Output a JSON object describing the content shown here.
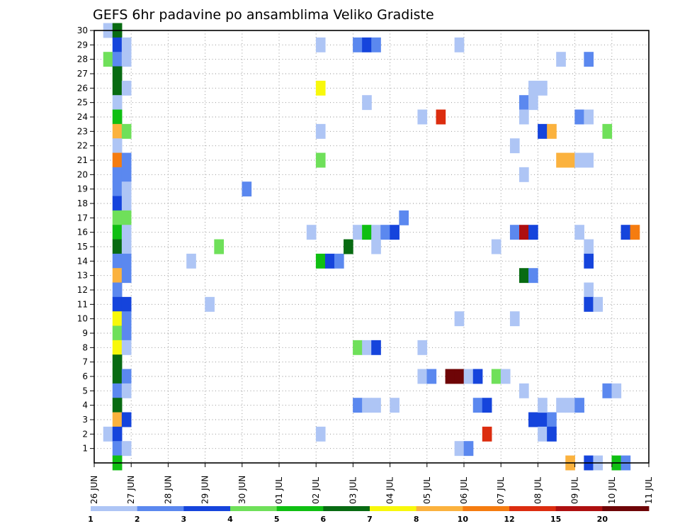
{
  "chart_data": {
    "type": "heatmap",
    "title": "GEFS 6hr padavine po ansamblima Veliko Gradiste",
    "xlabel": "",
    "ylabel": "",
    "x_tick_labels": [
      "26 JUN",
      "27 JUN",
      "28 JUN",
      "29 JUN",
      "30 JUN",
      "01 JUL",
      "02 JUL",
      "03 JUL",
      "04 JUL",
      "05 JUL",
      "06 JUL",
      "07 JUL",
      "08 JUL",
      "09 JUL",
      "10 JUL",
      "11 JUL"
    ],
    "y_tick_labels": [
      "1",
      "2",
      "3",
      "4",
      "5",
      "6",
      "7",
      "8",
      "9",
      "10",
      "11",
      "12",
      "13",
      "14",
      "15",
      "16",
      "17",
      "18",
      "19",
      "20",
      "21",
      "22",
      "23",
      "24",
      "25",
      "26",
      "27",
      "28",
      "29",
      "30"
    ],
    "x_range": [
      0,
      60
    ],
    "y_range": [
      0,
      30
    ],
    "grid": true,
    "colorbar_labels": [
      "1",
      "2",
      "3",
      "4",
      "5",
      "6",
      "7",
      "8",
      "10",
      "12",
      "15",
      "20"
    ],
    "colorbar_colors": [
      "#aec5f5",
      "#5b88ef",
      "#1544dc",
      "#6fe05a",
      "#0fbf12",
      "#086b12",
      "#f8f80b",
      "#fbb23e",
      "#f57c10",
      "#dc2d0f",
      "#ae0f10",
      "#6e0507"
    ],
    "units_note": "x = 6-hour step index from 26 JUN 00Z; y = ensemble member; cells = [x_step, member, color_class(0-11)]",
    "cells": [
      [
        1,
        30,
        0
      ],
      [
        2,
        30,
        5
      ],
      [
        2,
        29,
        2
      ],
      [
        3,
        29,
        0
      ],
      [
        1,
        28,
        3
      ],
      [
        2,
        28,
        1
      ],
      [
        3,
        28,
        0
      ],
      [
        2,
        27,
        5
      ],
      [
        2,
        26,
        5
      ],
      [
        3,
        26,
        0
      ],
      [
        2,
        25,
        0
      ],
      [
        2,
        24,
        4
      ],
      [
        2,
        23,
        7
      ],
      [
        3,
        23,
        3
      ],
      [
        2,
        22,
        0
      ],
      [
        2,
        21,
        8
      ],
      [
        3,
        21,
        1
      ],
      [
        2,
        20,
        1
      ],
      [
        3,
        20,
        1
      ],
      [
        2,
        19,
        1
      ],
      [
        3,
        19,
        0
      ],
      [
        2,
        18,
        2
      ],
      [
        3,
        18,
        0
      ],
      [
        2,
        17,
        3
      ],
      [
        3,
        17,
        3
      ],
      [
        2,
        16,
        4
      ],
      [
        3,
        16,
        0
      ],
      [
        2,
        15,
        5
      ],
      [
        3,
        15,
        0
      ],
      [
        2,
        14,
        1
      ],
      [
        3,
        14,
        1
      ],
      [
        2,
        13,
        7
      ],
      [
        3,
        13,
        1
      ],
      [
        2,
        12,
        1
      ],
      [
        2,
        11,
        2
      ],
      [
        3,
        11,
        2
      ],
      [
        2,
        10,
        6
      ],
      [
        3,
        10,
        1
      ],
      [
        2,
        9,
        3
      ],
      [
        3,
        9,
        1
      ],
      [
        2,
        8,
        6
      ],
      [
        3,
        8,
        0
      ],
      [
        2,
        7,
        5
      ],
      [
        2,
        6,
        5
      ],
      [
        3,
        6,
        1
      ],
      [
        2,
        5,
        1
      ],
      [
        3,
        5,
        0
      ],
      [
        2,
        4,
        5
      ],
      [
        2,
        3,
        7
      ],
      [
        3,
        3,
        2
      ],
      [
        1,
        2,
        0
      ],
      [
        2,
        2,
        2
      ],
      [
        2,
        1,
        1
      ],
      [
        3,
        1,
        0
      ],
      [
        2,
        0,
        4
      ],
      [
        10,
        14,
        0
      ],
      [
        12,
        11,
        0
      ],
      [
        13,
        15,
        3
      ],
      [
        16,
        19,
        1
      ],
      [
        23,
        16,
        0
      ],
      [
        24,
        29,
        0
      ],
      [
        24,
        26,
        6
      ],
      [
        24,
        23,
        0
      ],
      [
        24,
        21,
        3
      ],
      [
        24,
        14,
        4
      ],
      [
        25,
        14,
        2
      ],
      [
        26,
        14,
        1
      ],
      [
        24,
        2,
        0
      ],
      [
        27,
        15,
        5
      ],
      [
        28,
        16,
        0
      ],
      [
        29,
        16,
        4
      ],
      [
        30,
        16,
        0
      ],
      [
        31,
        16,
        1
      ],
      [
        32,
        16,
        2
      ],
      [
        33,
        17,
        1
      ],
      [
        28,
        29,
        1
      ],
      [
        29,
        29,
        2
      ],
      [
        30,
        29,
        1
      ],
      [
        29,
        25,
        0
      ],
      [
        28,
        8,
        3
      ],
      [
        29,
        8,
        0
      ],
      [
        30,
        8,
        2
      ],
      [
        28,
        4,
        1
      ],
      [
        29,
        4,
        0
      ],
      [
        30,
        4,
        0
      ],
      [
        32,
        4,
        0
      ],
      [
        30,
        15,
        0
      ],
      [
        35,
        24,
        0
      ],
      [
        37,
        24,
        9
      ],
      [
        35,
        8,
        0
      ],
      [
        35,
        6,
        0
      ],
      [
        36,
        6,
        1
      ],
      [
        38,
        6,
        11
      ],
      [
        39,
        6,
        11
      ],
      [
        40,
        6,
        0
      ],
      [
        41,
        6,
        2
      ],
      [
        39,
        29,
        0
      ],
      [
        39,
        10,
        0
      ],
      [
        39,
        1,
        0
      ],
      [
        40,
        1,
        1
      ],
      [
        41,
        4,
        1
      ],
      [
        42,
        4,
        2
      ],
      [
        43,
        15,
        0
      ],
      [
        43,
        6,
        3
      ],
      [
        44,
        6,
        0
      ],
      [
        42,
        2,
        9
      ],
      [
        45,
        22,
        0
      ],
      [
        46,
        25,
        1
      ],
      [
        47,
        25,
        0
      ],
      [
        46,
        24,
        0
      ],
      [
        47,
        26,
        0
      ],
      [
        48,
        26,
        0
      ],
      [
        45,
        16,
        1
      ],
      [
        46,
        16,
        10
      ],
      [
        47,
        16,
        2
      ],
      [
        46,
        13,
        5
      ],
      [
        47,
        13,
        1
      ],
      [
        46,
        20,
        0
      ],
      [
        45,
        10,
        0
      ],
      [
        46,
        5,
        0
      ],
      [
        47,
        3,
        2
      ],
      [
        48,
        3,
        2
      ],
      [
        49,
        3,
        1
      ],
      [
        48,
        4,
        0
      ],
      [
        48,
        23,
        2
      ],
      [
        49,
        23,
        7
      ],
      [
        50,
        4,
        0
      ],
      [
        51,
        4,
        0
      ],
      [
        52,
        4,
        1
      ],
      [
        48,
        2,
        0
      ],
      [
        49,
        2,
        2
      ],
      [
        50,
        21,
        7
      ],
      [
        51,
        21,
        7
      ],
      [
        52,
        21,
        0
      ],
      [
        53,
        21,
        0
      ],
      [
        50,
        28,
        0
      ],
      [
        52,
        24,
        1
      ],
      [
        53,
        24,
        0
      ],
      [
        53,
        28,
        1
      ],
      [
        53,
        15,
        0
      ],
      [
        53,
        14,
        2
      ],
      [
        53,
        12,
        0
      ],
      [
        53,
        11,
        2
      ],
      [
        54,
        11,
        0
      ],
      [
        52,
        16,
        0
      ],
      [
        55,
        23,
        3
      ],
      [
        55,
        5,
        1
      ],
      [
        56,
        5,
        0
      ],
      [
        57,
        16,
        2
      ],
      [
        58,
        16,
        8
      ],
      [
        51,
        0,
        7
      ],
      [
        53,
        0,
        2
      ],
      [
        54,
        0,
        0
      ],
      [
        56,
        0,
        4
      ],
      [
        57,
        0,
        1
      ]
    ]
  }
}
